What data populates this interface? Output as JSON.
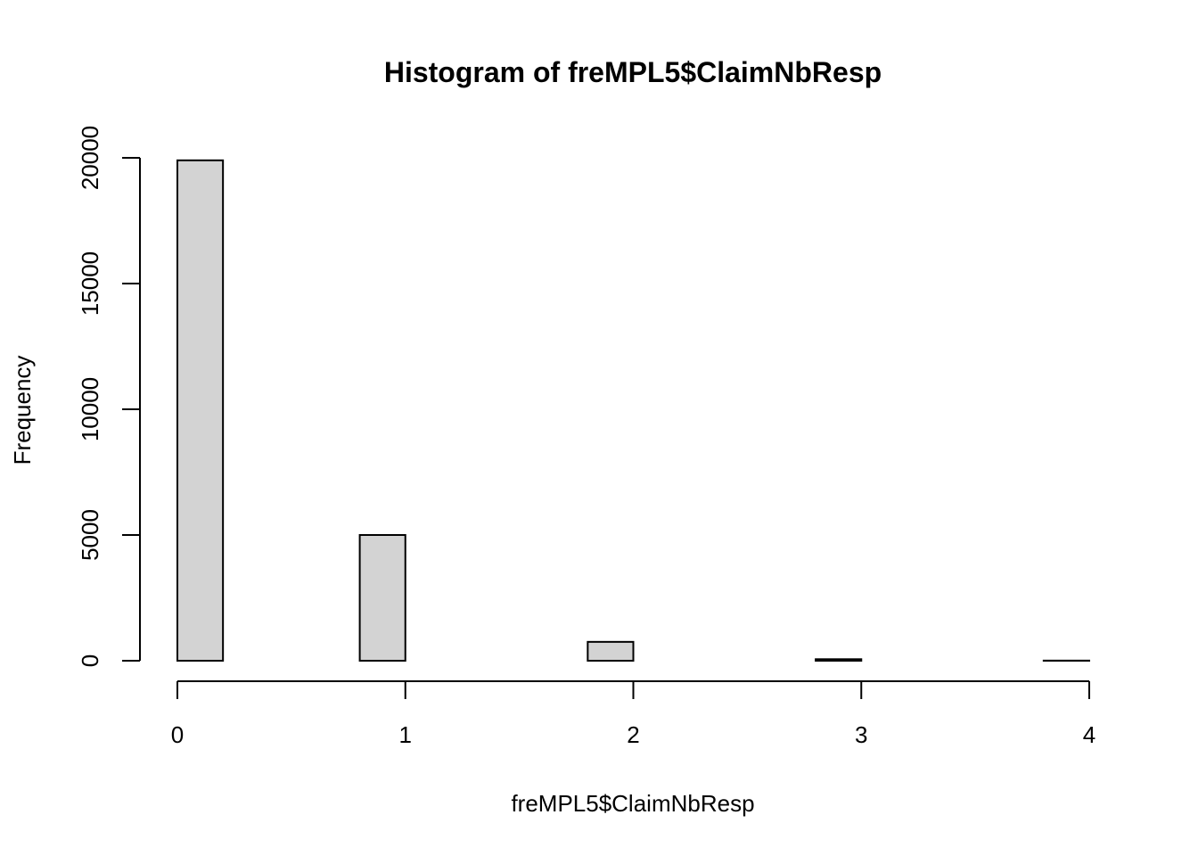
{
  "chart_data": {
    "type": "bar",
    "title": "Histogram of freMPL5$ClaimNbResp",
    "xlabel": "freMPL5$ClaimNbResp",
    "ylabel": "Frequency",
    "bins": [
      {
        "x0": 0.0,
        "x1": 0.2,
        "count": 19900
      },
      {
        "x0": 0.2,
        "x1": 0.4,
        "count": 0
      },
      {
        "x0": 0.4,
        "x1": 0.6,
        "count": 0
      },
      {
        "x0": 0.6,
        "x1": 0.8,
        "count": 0
      },
      {
        "x0": 0.8,
        "x1": 1.0,
        "count": 5000
      },
      {
        "x0": 1.0,
        "x1": 1.2,
        "count": 0
      },
      {
        "x0": 1.2,
        "x1": 1.4,
        "count": 0
      },
      {
        "x0": 1.4,
        "x1": 1.6,
        "count": 0
      },
      {
        "x0": 1.6,
        "x1": 1.8,
        "count": 0
      },
      {
        "x0": 1.8,
        "x1": 2.0,
        "count": 750
      },
      {
        "x0": 2.0,
        "x1": 2.2,
        "count": 0
      },
      {
        "x0": 2.2,
        "x1": 2.4,
        "count": 0
      },
      {
        "x0": 2.4,
        "x1": 2.6,
        "count": 0
      },
      {
        "x0": 2.6,
        "x1": 2.8,
        "count": 0
      },
      {
        "x0": 2.8,
        "x1": 3.0,
        "count": 60
      },
      {
        "x0": 3.0,
        "x1": 3.2,
        "count": 0
      },
      {
        "x0": 3.2,
        "x1": 3.4,
        "count": 0
      },
      {
        "x0": 3.4,
        "x1": 3.6,
        "count": 0
      },
      {
        "x0": 3.6,
        "x1": 3.8,
        "count": 0
      },
      {
        "x0": 3.8,
        "x1": 4.0,
        "count": 5
      }
    ],
    "xlim": [
      0,
      4
    ],
    "ylim": [
      0,
      20000
    ],
    "x_ticks": [
      0,
      1,
      2,
      3,
      4
    ],
    "y_ticks": [
      0,
      5000,
      10000,
      15000,
      20000
    ],
    "x_tick_labels": [
      "0",
      "1",
      "2",
      "3",
      "4"
    ],
    "y_tick_labels": [
      "0",
      "5000",
      "10000",
      "15000",
      "20000"
    ],
    "bar_fill": "#d3d3d3",
    "bar_stroke": "#000000",
    "grid": false
  }
}
